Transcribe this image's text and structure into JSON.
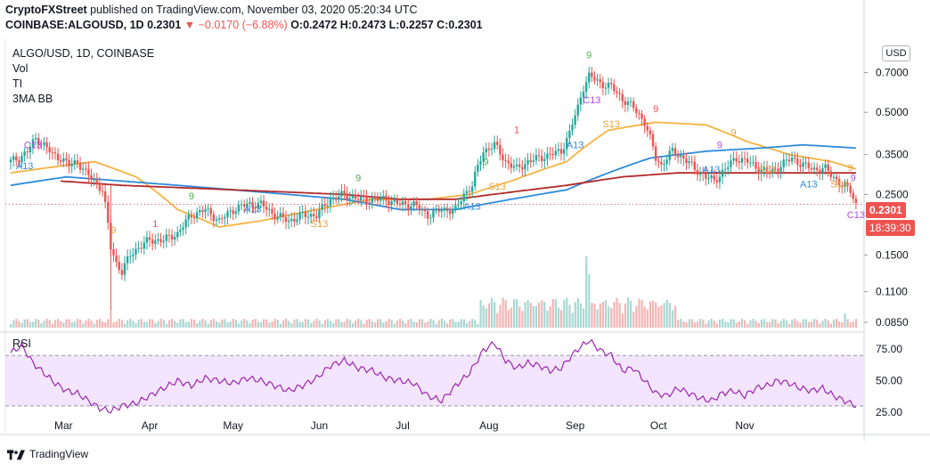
{
  "header": {
    "publisher": "CryptoFXStreet",
    "published_text": "published on TradingView.com, November 03, 2020 05:20:34 UTC",
    "symbol_line": "COINBASE:ALGOUSD, 1D",
    "last": "0.2301",
    "change": "▼ −0.0170 (−6.88%)",
    "ohlc": "O:0.2472 H:0.2473 L:0.2257 C:0.2301"
  },
  "legend": {
    "symbol": "ALGO/USD, 1D, COINBASE",
    "items": [
      "Vol",
      "TI",
      "3MA BB"
    ]
  },
  "currency_button": "USD",
  "price_tag": "0.2301",
  "countdown_tag": "18:39:30",
  "footer": {
    "brand": "TradingView"
  },
  "colors": {
    "up": "#26a69a",
    "down": "#ef5350",
    "ma_orange": "#f5b342",
    "ma_blue": "#2e8bdc",
    "ma_red": "#b22a2a",
    "rsi": "#9c27b0",
    "rsi_band": "#f3e5fd",
    "td_green": "#4caf50",
    "td_orange": "#e8a33d",
    "td_red": "#ef5350",
    "td_purple": "#b24ed3",
    "td_blue": "#2e8bdc"
  },
  "chart_data": {
    "type": "candlestick",
    "price_axis_ticks": [
      "0.7000",
      "0.5000",
      "0.3500",
      "0.2500",
      "0.1500",
      "0.1100",
      "0.0850"
    ],
    "rsi_axis_ticks": [
      "75.00",
      "50.00",
      "25.00"
    ],
    "x_labels": [
      "Mar",
      "Apr",
      "May",
      "Jun",
      "Jul",
      "Aug",
      "Sep",
      "Oct",
      "Nov"
    ],
    "price_scale": "log",
    "price_range": [
      0.08,
      0.9
    ],
    "rsi_range": [
      20,
      85
    ],
    "rsi_levels": [
      70,
      30
    ],
    "close_anchors": [
      [
        0,
        0.33
      ],
      [
        3,
        0.34
      ],
      [
        6,
        0.36
      ],
      [
        9,
        0.4
      ],
      [
        12,
        0.38
      ],
      [
        15,
        0.35
      ],
      [
        18,
        0.34
      ],
      [
        21,
        0.32
      ],
      [
        24,
        0.33
      ],
      [
        27,
        0.3
      ],
      [
        30,
        0.28
      ],
      [
        33,
        0.26
      ],
      [
        36,
        0.16
      ],
      [
        38,
        0.14
      ],
      [
        40,
        0.13
      ],
      [
        43,
        0.15
      ],
      [
        46,
        0.16
      ],
      [
        50,
        0.17
      ],
      [
        55,
        0.17
      ],
      [
        60,
        0.18
      ],
      [
        65,
        0.21
      ],
      [
        70,
        0.22
      ],
      [
        75,
        0.2
      ],
      [
        80,
        0.22
      ],
      [
        85,
        0.23
      ],
      [
        90,
        0.23
      ],
      [
        95,
        0.21
      ],
      [
        100,
        0.2
      ],
      [
        105,
        0.21
      ],
      [
        110,
        0.21
      ],
      [
        115,
        0.24
      ],
      [
        120,
        0.25
      ],
      [
        125,
        0.24
      ],
      [
        130,
        0.24
      ],
      [
        135,
        0.24
      ],
      [
        140,
        0.23
      ],
      [
        145,
        0.23
      ],
      [
        150,
        0.21
      ],
      [
        155,
        0.22
      ],
      [
        160,
        0.22
      ],
      [
        163,
        0.25
      ],
      [
        166,
        0.27
      ],
      [
        170,
        0.36
      ],
      [
        174,
        0.38
      ],
      [
        178,
        0.33
      ],
      [
        182,
        0.31
      ],
      [
        186,
        0.33
      ],
      [
        190,
        0.34
      ],
      [
        194,
        0.35
      ],
      [
        198,
        0.36
      ],
      [
        201,
        0.42
      ],
      [
        204,
        0.52
      ],
      [
        206,
        0.62
      ],
      [
        208,
        0.68
      ],
      [
        212,
        0.64
      ],
      [
        216,
        0.62
      ],
      [
        220,
        0.56
      ],
      [
        224,
        0.52
      ],
      [
        228,
        0.46
      ],
      [
        230,
        0.4
      ],
      [
        232,
        0.34
      ],
      [
        234,
        0.32
      ],
      [
        238,
        0.36
      ],
      [
        242,
        0.34
      ],
      [
        246,
        0.31
      ],
      [
        250,
        0.29
      ],
      [
        253,
        0.28
      ],
      [
        257,
        0.31
      ],
      [
        261,
        0.34
      ],
      [
        265,
        0.33
      ],
      [
        269,
        0.31
      ],
      [
        273,
        0.3
      ],
      [
        277,
        0.32
      ],
      [
        281,
        0.34
      ],
      [
        285,
        0.32
      ],
      [
        289,
        0.31
      ],
      [
        293,
        0.31
      ],
      [
        296,
        0.29
      ],
      [
        299,
        0.27
      ],
      [
        302,
        0.26
      ],
      [
        304,
        0.23
      ]
    ],
    "ma_orange_anchors": [
      [
        0,
        0.3
      ],
      [
        30,
        0.33
      ],
      [
        45,
        0.29
      ],
      [
        60,
        0.22
      ],
      [
        75,
        0.19
      ],
      [
        90,
        0.2
      ],
      [
        110,
        0.22
      ],
      [
        130,
        0.24
      ],
      [
        150,
        0.24
      ],
      [
        165,
        0.25
      ],
      [
        180,
        0.28
      ],
      [
        200,
        0.33
      ],
      [
        215,
        0.43
      ],
      [
        232,
        0.46
      ],
      [
        250,
        0.45
      ],
      [
        265,
        0.39
      ],
      [
        280,
        0.35
      ],
      [
        295,
        0.33
      ],
      [
        304,
        0.31
      ]
    ],
    "ma_blue_anchors": [
      [
        0,
        0.27
      ],
      [
        20,
        0.29
      ],
      [
        40,
        0.28
      ],
      [
        60,
        0.27
      ],
      [
        80,
        0.26
      ],
      [
        100,
        0.25
      ],
      [
        120,
        0.24
      ],
      [
        140,
        0.22
      ],
      [
        160,
        0.22
      ],
      [
        180,
        0.24
      ],
      [
        200,
        0.26
      ],
      [
        215,
        0.3
      ],
      [
        230,
        0.34
      ],
      [
        250,
        0.36
      ],
      [
        270,
        0.37
      ],
      [
        285,
        0.38
      ],
      [
        304,
        0.37
      ]
    ],
    "ma_red_anchors": [
      [
        18,
        0.28
      ],
      [
        40,
        0.27
      ],
      [
        60,
        0.265
      ],
      [
        80,
        0.26
      ],
      [
        100,
        0.255
      ],
      [
        120,
        0.25
      ],
      [
        140,
        0.24
      ],
      [
        160,
        0.24
      ],
      [
        180,
        0.255
      ],
      [
        200,
        0.27
      ],
      [
        220,
        0.29
      ],
      [
        240,
        0.3
      ],
      [
        260,
        0.3
      ],
      [
        280,
        0.3
      ],
      [
        304,
        0.3
      ]
    ],
    "rsi_anchors": [
      [
        0,
        72
      ],
      [
        4,
        78
      ],
      [
        8,
        64
      ],
      [
        12,
        56
      ],
      [
        16,
        48
      ],
      [
        20,
        42
      ],
      [
        24,
        40
      ],
      [
        28,
        34
      ],
      [
        32,
        28
      ],
      [
        36,
        26
      ],
      [
        40,
        30
      ],
      [
        45,
        32
      ],
      [
        50,
        38
      ],
      [
        55,
        44
      ],
      [
        60,
        50
      ],
      [
        65,
        46
      ],
      [
        70,
        52
      ],
      [
        75,
        50
      ],
      [
        80,
        48
      ],
      [
        85,
        52
      ],
      [
        90,
        50
      ],
      [
        95,
        46
      ],
      [
        100,
        42
      ],
      [
        105,
        46
      ],
      [
        110,
        52
      ],
      [
        115,
        62
      ],
      [
        120,
        66
      ],
      [
        125,
        60
      ],
      [
        130,
        58
      ],
      [
        135,
        52
      ],
      [
        140,
        50
      ],
      [
        145,
        48
      ],
      [
        150,
        38
      ],
      [
        155,
        34
      ],
      [
        160,
        46
      ],
      [
        165,
        56
      ],
      [
        170,
        74
      ],
      [
        174,
        80
      ],
      [
        178,
        66
      ],
      [
        182,
        60
      ],
      [
        186,
        64
      ],
      [
        190,
        62
      ],
      [
        194,
        58
      ],
      [
        198,
        60
      ],
      [
        201,
        68
      ],
      [
        204,
        75
      ],
      [
        208,
        82
      ],
      [
        212,
        74
      ],
      [
        216,
        70
      ],
      [
        220,
        58
      ],
      [
        224,
        60
      ],
      [
        228,
        50
      ],
      [
        232,
        40
      ],
      [
        236,
        38
      ],
      [
        240,
        44
      ],
      [
        244,
        40
      ],
      [
        248,
        36
      ],
      [
        252,
        34
      ],
      [
        256,
        40
      ],
      [
        260,
        42
      ],
      [
        264,
        38
      ],
      [
        268,
        44
      ],
      [
        272,
        46
      ],
      [
        276,
        50
      ],
      [
        280,
        48
      ],
      [
        284,
        44
      ],
      [
        288,
        42
      ],
      [
        292,
        44
      ],
      [
        296,
        38
      ],
      [
        300,
        34
      ],
      [
        304,
        30
      ]
    ],
    "annotations": [
      {
        "text": "C13",
        "color": "td_purple",
        "bar": 8,
        "price": 0.37
      },
      {
        "text": "A13",
        "color": "td_blue",
        "bar": 5,
        "price": 0.31
      },
      {
        "text": "9",
        "color": "td_orange",
        "bar": 37,
        "price": 0.18
      },
      {
        "text": "1",
        "color": "td_red",
        "bar": 52,
        "price": 0.19
      },
      {
        "text": "9",
        "color": "td_green",
        "bar": 65,
        "price": 0.24
      },
      {
        "text": "A13",
        "color": "td_blue",
        "bar": 87,
        "price": 0.215
      },
      {
        "text": "S13",
        "color": "td_orange",
        "bar": 111,
        "price": 0.19
      },
      {
        "text": "9",
        "color": "td_green",
        "bar": 125,
        "price": 0.28
      },
      {
        "text": "1",
        "color": "td_red",
        "bar": 182,
        "price": 0.42
      },
      {
        "text": "9",
        "color": "td_green",
        "bar": 171,
        "price": 0.32
      },
      {
        "text": "S13",
        "color": "td_orange",
        "bar": 175,
        "price": 0.26
      },
      {
        "text": "A13",
        "color": "td_blue",
        "bar": 166,
        "price": 0.22
      },
      {
        "text": "9",
        "color": "td_green",
        "bar": 208,
        "price": 0.79
      },
      {
        "text": "C13",
        "color": "td_purple",
        "bar": 209,
        "price": 0.54
      },
      {
        "text": "A13",
        "color": "td_blue",
        "bar": 203,
        "price": 0.37
      },
      {
        "text": "S13",
        "color": "td_orange",
        "bar": 216,
        "price": 0.44
      },
      {
        "text": "9",
        "color": "td_red",
        "bar": 232,
        "price": 0.5
      },
      {
        "text": "9",
        "color": "td_orange",
        "bar": 260,
        "price": 0.41
      },
      {
        "text": "9",
        "color": "td_purple",
        "bar": 255,
        "price": 0.37
      },
      {
        "text": "A13",
        "color": "td_blue",
        "bar": 252,
        "price": 0.3
      },
      {
        "text": "S13",
        "color": "td_orange",
        "bar": 272,
        "price": 0.3
      },
      {
        "text": "A13",
        "color": "td_blue",
        "bar": 287,
        "price": 0.265
      },
      {
        "text": "S13",
        "color": "td_orange",
        "bar": 298,
        "price": 0.265
      },
      {
        "text": "9",
        "color": "td_orange",
        "bar": 302,
        "price": 0.305
      },
      {
        "text": "9",
        "color": "td_purple",
        "bar": 303,
        "price": 0.28
      },
      {
        "text": "C13",
        "color": "td_purple",
        "bar": 304,
        "price": 0.205
      }
    ]
  }
}
